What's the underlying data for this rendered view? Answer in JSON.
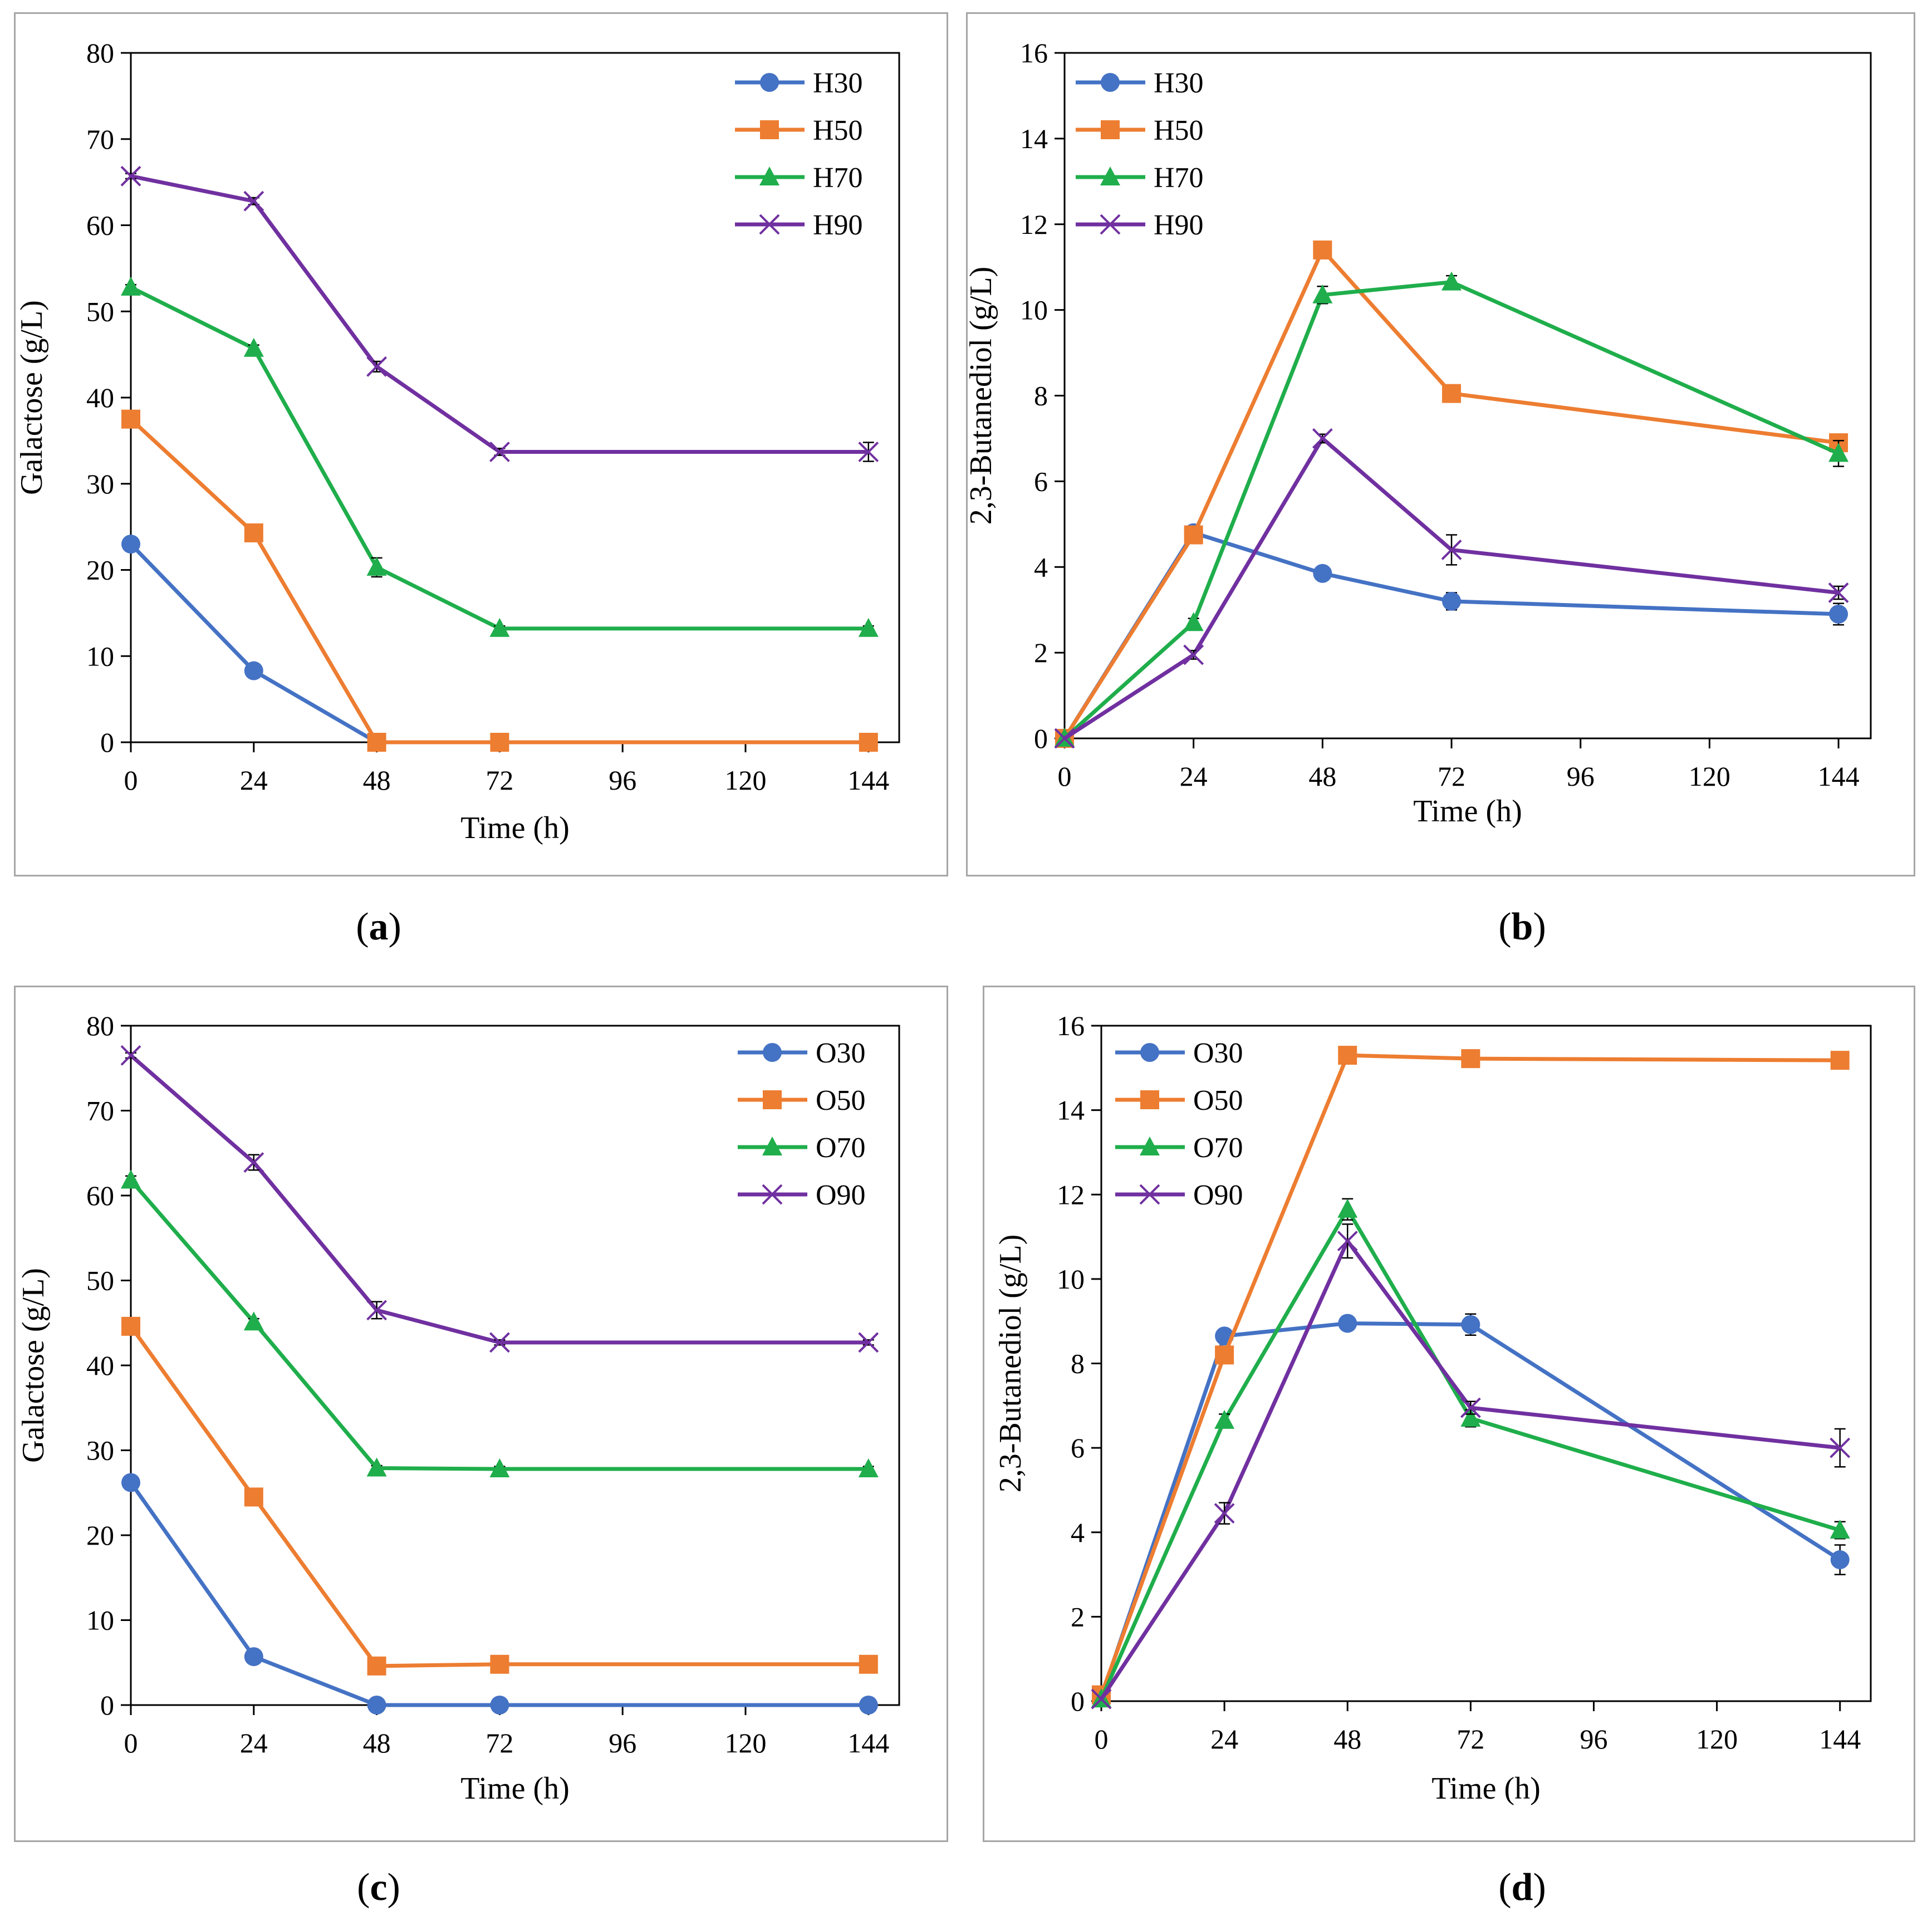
{
  "colors": {
    "s1": "#4472c4",
    "s2": "#ed7d31",
    "s3": "#1fae4b",
    "s4": "#7030a0"
  },
  "chart_data": [
    {
      "id": "a",
      "type": "line",
      "panel_label": "a",
      "xlabel": "Time (h)",
      "ylabel": "Galactose (g/L)",
      "xlim": [
        0,
        150
      ],
      "ylim": [
        0,
        80
      ],
      "yticks": [
        0,
        10,
        20,
        30,
        40,
        50,
        60,
        70,
        80
      ],
      "xticks": [
        0,
        24,
        48,
        72,
        96,
        120,
        144
      ],
      "legend": "top-right",
      "series": [
        {
          "name": "H30",
          "marker": "circle",
          "x": [
            0,
            24,
            48
          ],
          "values": [
            23,
            8.3,
            0
          ],
          "err": [
            0.3,
            0.6,
            0
          ]
        },
        {
          "name": "H50",
          "marker": "square",
          "x": [
            0,
            24,
            48,
            72,
            144
          ],
          "values": [
            37.5,
            24.3,
            0,
            0,
            0
          ],
          "err": [
            0.3,
            0.5,
            0,
            0,
            0
          ]
        },
        {
          "name": "H70",
          "marker": "triangle",
          "x": [
            0,
            24,
            48,
            72,
            144
          ],
          "values": [
            52.8,
            45.7,
            20.3,
            13.2,
            13.2
          ],
          "err": [
            0.3,
            0.4,
            1.1,
            0.3,
            0.3
          ]
        },
        {
          "name": "H90",
          "marker": "cross",
          "x": [
            0,
            24,
            48,
            72,
            144
          ],
          "values": [
            65.7,
            62.8,
            43.6,
            33.7,
            33.7
          ],
          "err": [
            0.3,
            0.4,
            0.6,
            0.4,
            1.1
          ]
        }
      ]
    },
    {
      "id": "b",
      "type": "line",
      "panel_label": "b",
      "xlabel": "Time (h)",
      "ylabel": "2,3-Butanediol (g/L)",
      "xlim": [
        0,
        150
      ],
      "ylim": [
        0,
        16
      ],
      "yticks": [
        0,
        2,
        4,
        6,
        8,
        10,
        12,
        14,
        16
      ],
      "xticks": [
        0,
        24,
        48,
        72,
        96,
        120,
        144
      ],
      "legend": "top-left",
      "series": [
        {
          "name": "H30",
          "marker": "circle",
          "x": [
            0,
            24,
            48,
            72,
            144
          ],
          "values": [
            0,
            4.8,
            3.85,
            3.2,
            2.9
          ],
          "err": [
            0,
            0.1,
            0.1,
            0.2,
            0.25
          ]
        },
        {
          "name": "H50",
          "marker": "square",
          "x": [
            0,
            24,
            48,
            72,
            144
          ],
          "values": [
            0,
            4.75,
            11.4,
            8.05,
            6.9
          ],
          "err": [
            0,
            0.1,
            0.1,
            0.1,
            0.1
          ]
        },
        {
          "name": "H70",
          "marker": "triangle",
          "x": [
            0,
            24,
            48,
            72,
            144
          ],
          "values": [
            0,
            2.7,
            10.35,
            10.65,
            6.65
          ],
          "err": [
            0,
            0.1,
            0.2,
            0.15,
            0.3
          ]
        },
        {
          "name": "H90",
          "marker": "cross",
          "x": [
            0,
            24,
            48,
            72,
            144
          ],
          "values": [
            0,
            1.95,
            7.0,
            4.4,
            3.4
          ],
          "err": [
            0,
            0.1,
            0.1,
            0.35,
            0.15
          ]
        }
      ]
    },
    {
      "id": "c",
      "type": "line",
      "panel_label": "c",
      "xlabel": "Time (h)",
      "ylabel": "Galactose (g/L)",
      "xlim": [
        0,
        150
      ],
      "ylim": [
        0,
        80
      ],
      "yticks": [
        0,
        10,
        20,
        30,
        40,
        50,
        60,
        70,
        80
      ],
      "xticks": [
        0,
        24,
        48,
        72,
        96,
        120,
        144
      ],
      "legend": "top-right",
      "series": [
        {
          "name": "O30",
          "marker": "circle",
          "x": [
            0,
            24,
            48,
            72,
            144
          ],
          "values": [
            26.2,
            5.7,
            0,
            0,
            0
          ],
          "err": [
            0.3,
            0.3,
            0,
            0,
            0
          ]
        },
        {
          "name": "O50",
          "marker": "square",
          "x": [
            0,
            24,
            48,
            72,
            144
          ],
          "values": [
            44.6,
            24.5,
            4.6,
            4.8,
            4.8
          ],
          "err": [
            0.3,
            0.4,
            0.2,
            0.2,
            0.2
          ]
        },
        {
          "name": "O70",
          "marker": "triangle",
          "x": [
            0,
            24,
            48,
            72,
            144
          ],
          "values": [
            61.8,
            45.1,
            27.9,
            27.8,
            27.8
          ],
          "err": [
            0.5,
            0.4,
            0.3,
            0.3,
            0.3
          ]
        },
        {
          "name": "O90",
          "marker": "cross",
          "x": [
            0,
            24,
            48,
            72,
            144
          ],
          "values": [
            76.5,
            63.9,
            46.5,
            42.7,
            42.7
          ],
          "err": [
            0.3,
            0.9,
            1.0,
            0.3,
            0.3
          ]
        }
      ]
    },
    {
      "id": "d",
      "type": "line",
      "panel_label": "d",
      "xlabel": "Time (h)",
      "ylabel": "2,3-Butanediol (g/L)",
      "xlim": [
        0,
        150
      ],
      "ylim": [
        0,
        16
      ],
      "yticks": [
        0,
        2,
        4,
        6,
        8,
        10,
        12,
        14,
        16
      ],
      "xticks": [
        0,
        24,
        48,
        72,
        96,
        120,
        144
      ],
      "legend": "top-left",
      "series": [
        {
          "name": "O30",
          "marker": "circle",
          "x": [
            0,
            24,
            48,
            72,
            144
          ],
          "values": [
            0.1,
            8.65,
            8.95,
            8.92,
            3.35
          ],
          "err": [
            0,
            0.1,
            0.15,
            0.25,
            0.35
          ]
        },
        {
          "name": "O50",
          "marker": "square",
          "x": [
            0,
            24,
            48,
            72,
            144
          ],
          "values": [
            0.15,
            8.2,
            15.3,
            15.22,
            15.18
          ],
          "err": [
            0,
            0.1,
            0.1,
            0.1,
            0.1
          ]
        },
        {
          "name": "O70",
          "marker": "triangle",
          "x": [
            0,
            24,
            48,
            72,
            144
          ],
          "values": [
            0.05,
            6.65,
            11.65,
            6.7,
            4.05
          ],
          "err": [
            0,
            0.15,
            0.25,
            0.2,
            0.2
          ]
        },
        {
          "name": "O90",
          "marker": "cross",
          "x": [
            0,
            24,
            48,
            72,
            144
          ],
          "values": [
            0.05,
            4.45,
            10.9,
            6.95,
            6.0
          ],
          "err": [
            0,
            0.25,
            0.4,
            0.15,
            0.45
          ]
        }
      ]
    }
  ]
}
